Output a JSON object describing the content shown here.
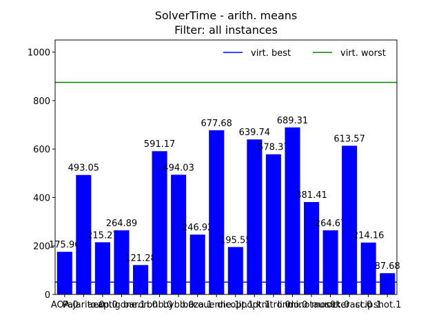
{
  "chart_data": {
    "type": "bar",
    "title": "SolverTime - arith. means",
    "subtitle": "Filter: all instances",
    "categories": [
      "AOA.0",
      "Pajarito.0",
      "aecp.0",
      "antigone.1",
      "baron.0",
      "bnb.0",
      "bybb.0",
      "baza.1",
      "couenne.1",
      "dicopt.1",
      "ipopt.1",
      "knitro.0",
      "lindo.0",
      "minotaur.0",
      "mosek.0",
      "octeract.0",
      "scip.1",
      "shot.1"
    ],
    "values": [
      175.96,
      493.05,
      215.27,
      264.89,
      121.28,
      591.17,
      494.03,
      246.92,
      677.68,
      195.55,
      639.74,
      578.37,
      689.31,
      381.41,
      264.67,
      613.57,
      214.16,
      87.68
    ],
    "color": "#0000ff",
    "lines": [
      {
        "name": "virt. best",
        "color": "#0000ff",
        "value": 51
      },
      {
        "name": "virt. worst",
        "color": "#008000",
        "value": 875
      }
    ],
    "ylim": [
      0,
      1050
    ],
    "yticks": [
      0,
      200,
      400,
      600,
      800,
      1000
    ],
    "legend": "upper right"
  }
}
